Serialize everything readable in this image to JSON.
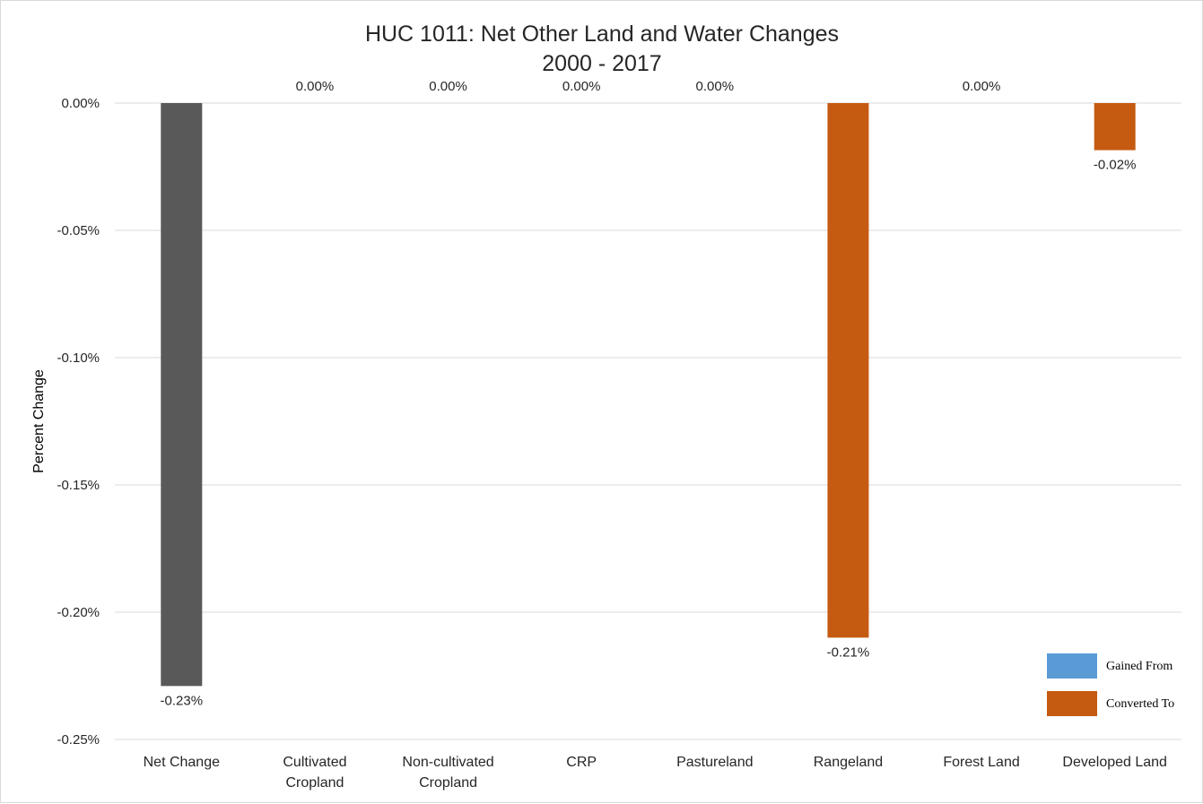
{
  "chart_data": {
    "type": "bar",
    "title": [
      "HUC 1011: Net Other Land and Water Changes",
      "2000 - 2017"
    ],
    "ylabel": "Percent Change",
    "xlabel": "",
    "ylim": [
      -0.25,
      0
    ],
    "yticks": [
      0,
      -0.05,
      -0.1,
      -0.15,
      -0.2,
      -0.25
    ],
    "ytick_labels": [
      "0.00%",
      "-0.05%",
      "-0.10%",
      "-0.15%",
      "-0.20%",
      "-0.25%"
    ],
    "grid": true,
    "categories": [
      [
        "Net Change"
      ],
      [
        "Cultivated",
        "Cropland"
      ],
      [
        "Non-cultivated",
        "Cropland"
      ],
      [
        "CRP"
      ],
      [
        "Pastureland"
      ],
      [
        "Rangeland"
      ],
      [
        "Forest Land"
      ],
      [
        "Developed Land"
      ]
    ],
    "values": [
      -0.229,
      0,
      0,
      0,
      0,
      -0.21,
      0,
      -0.0185
    ],
    "value_labels": [
      "-0.23%",
      "0.00%",
      "0.00%",
      "0.00%",
      "0.00%",
      "-0.21%",
      "0.00%",
      "-0.02%"
    ],
    "bar_colors": [
      "#595959",
      "#c55a11",
      "#c55a11",
      "#c55a11",
      "#c55a11",
      "#c55a11",
      "#c55a11",
      "#c55a11"
    ],
    "legend": {
      "position": "bottom-right",
      "entries": [
        {
          "label": "Gained From",
          "color": "#5b9bd5"
        },
        {
          "label": "Converted To",
          "color": "#c55a11"
        }
      ]
    }
  }
}
